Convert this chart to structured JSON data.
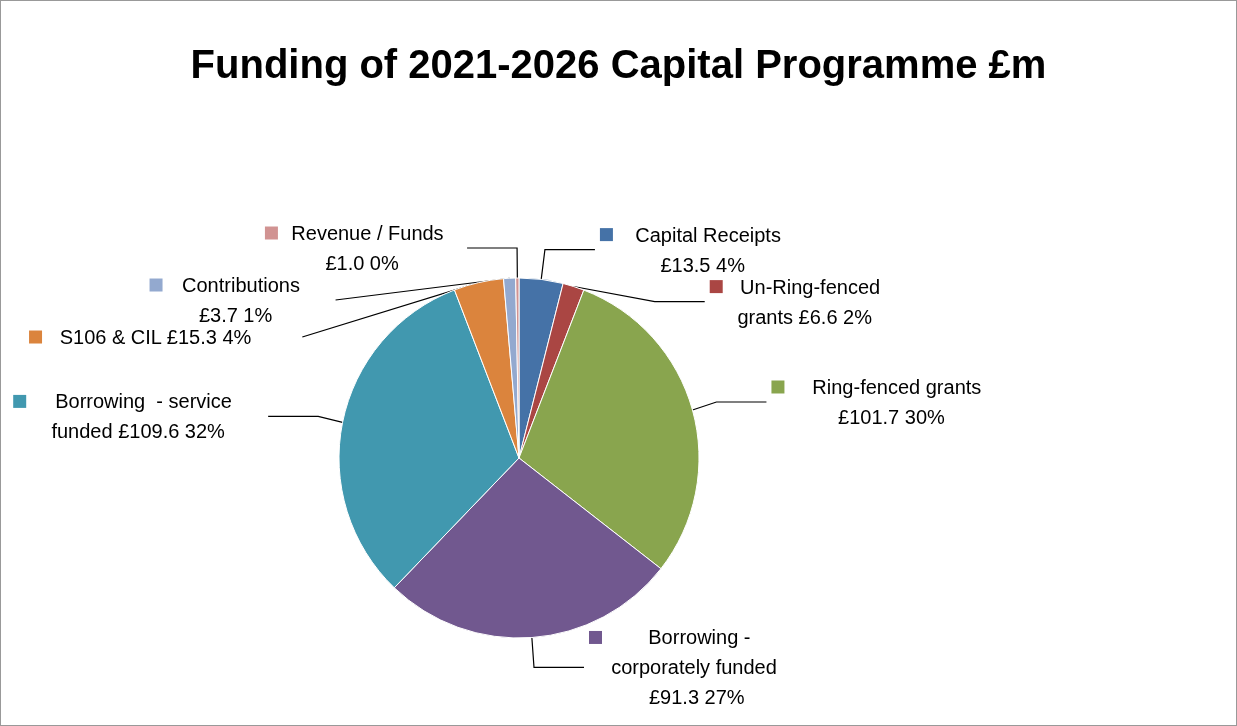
{
  "chart_data": {
    "type": "pie",
    "title": "Funding of 2021-2026 Capital Programme £m",
    "categories": [
      "Capital Receipts",
      "Un-Ring-fenced grants",
      "Ring-fenced grants",
      "Borrowing - corporately funded",
      "Borrowing  - service funded",
      "S106 & CIL",
      "Contributions",
      "Revenue / Funds"
    ],
    "values": [
      13.5,
      6.6,
      101.7,
      91.3,
      109.6,
      15.3,
      3.7,
      1.0
    ],
    "value_labels": [
      "£13.5 4%",
      "£6.6 2%",
      "£101.7 30%",
      "£91.3 27%",
      "£109.6 32%",
      "£15.3 4%",
      "£3.7 1%",
      "£1.0 0%"
    ],
    "legend": "top",
    "colors": [
      "#4572a7",
      "#aa4643",
      "#89a54e",
      "#71588f",
      "#4198af",
      "#db843d",
      "#93a9cf",
      "#d19392"
    ]
  }
}
